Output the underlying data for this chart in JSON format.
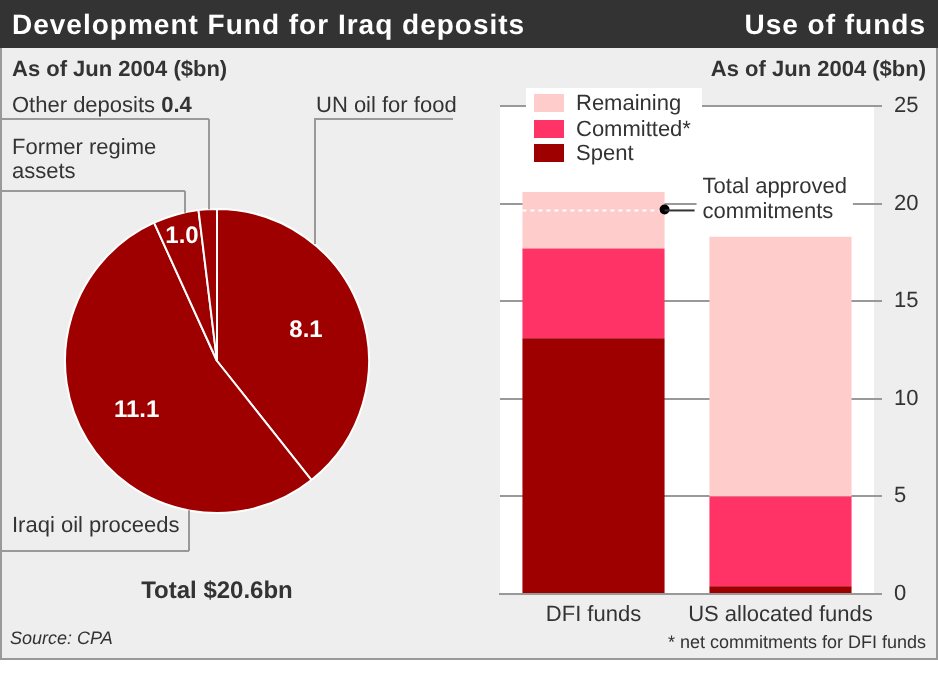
{
  "chart_data": [
    {
      "type": "pie",
      "title": "Development Fund for Iraq deposits",
      "subtitle": "As of Jun 2004 ($bn)",
      "categories": [
        "UN oil for food",
        "Iraqi oil proceeds",
        "Former regime assets",
        "Other deposits"
      ],
      "values": [
        8.1,
        11.1,
        1.0,
        0.4
      ],
      "value_labels": [
        "8.1",
        "11.1",
        "1.0",
        "0.4"
      ],
      "colors": [
        "#9e0000",
        "#9e0000",
        "#9e0000",
        "#9e0000"
      ],
      "annotations": [
        "Total $20.6bn",
        "Source: CPA"
      ]
    },
    {
      "type": "bar",
      "stacked": true,
      "title": "Use of funds",
      "subtitle": "As of Jun 2004 ($bn)",
      "categories": [
        "DFI funds",
        "US allocated funds"
      ],
      "series": [
        {
          "name": "Spent",
          "color": "#9e0000",
          "values": [
            13.1,
            0.4
          ]
        },
        {
          "name": "Committed*",
          "color": "#ff3366",
          "values": [
            4.6,
            4.6
          ]
        },
        {
          "name": "Remaining",
          "color": "#ffcccc",
          "values": [
            2.9,
            13.3
          ]
        }
      ],
      "ylim": [
        0,
        25
      ],
      "yticks": [
        0,
        5,
        10,
        15,
        20,
        25
      ],
      "grid": "y",
      "legend": "top left",
      "ref_lines": [
        {
          "axis": "y",
          "value": 19.7,
          "label": "Total approved commitments",
          "color": "#ffffff",
          "line_style": "dotted"
        }
      ],
      "annotations": [
        "* net commitments for DFI funds"
      ]
    }
  ]
}
